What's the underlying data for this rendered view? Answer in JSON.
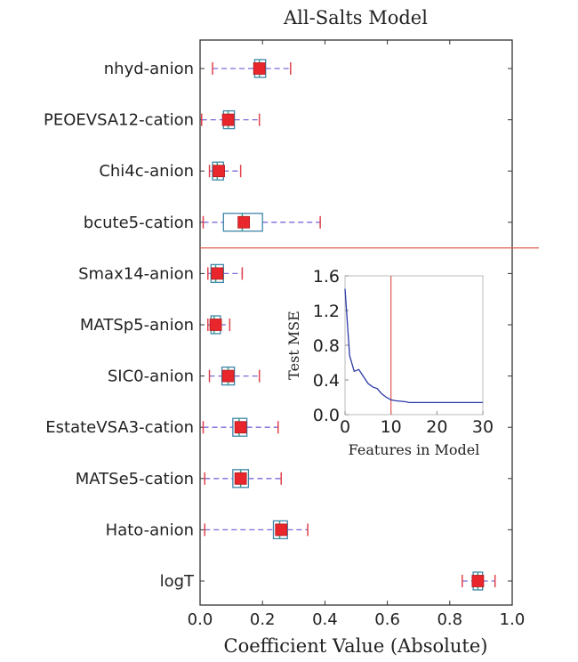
{
  "chart_data": {
    "type": "box",
    "title": "All-Salts Model",
    "xlabel": "Coefficient Value (Absolute)",
    "xlim": [
      0.0,
      1.0
    ],
    "xticks": [
      "0.0",
      "0.2",
      "0.4",
      "0.6",
      "0.8",
      "1.0"
    ],
    "separator_after_index": 3,
    "features": [
      {
        "label": "nhyd-anion",
        "whisker_low": 0.04,
        "q1": 0.175,
        "median": 0.19,
        "q3": 0.21,
        "whisker_high": 0.29,
        "mean": 0.19
      },
      {
        "label": "PEOEVSA12-cation",
        "whisker_low": 0.005,
        "q1": 0.075,
        "median": 0.09,
        "q3": 0.11,
        "whisker_high": 0.19,
        "mean": 0.09
      },
      {
        "label": "Chi4c-anion",
        "whisker_low": 0.03,
        "q1": 0.04,
        "median": 0.055,
        "q3": 0.075,
        "whisker_high": 0.13,
        "mean": 0.06
      },
      {
        "label": "bcute5-cation",
        "whisker_low": 0.01,
        "q1": 0.075,
        "median": 0.135,
        "q3": 0.2,
        "whisker_high": 0.385,
        "mean": 0.14
      },
      {
        "label": "Smax14-anion",
        "whisker_low": 0.025,
        "q1": 0.035,
        "median": 0.05,
        "q3": 0.075,
        "whisker_high": 0.135,
        "mean": 0.055
      },
      {
        "label": "MATSp5-anion",
        "whisker_low": 0.025,
        "q1": 0.035,
        "median": 0.045,
        "q3": 0.065,
        "whisker_high": 0.095,
        "mean": 0.05
      },
      {
        "label": "SIC0-anion",
        "whisker_low": 0.03,
        "q1": 0.07,
        "median": 0.09,
        "q3": 0.11,
        "whisker_high": 0.19,
        "mean": 0.09
      },
      {
        "label": "EstateVSA3-cation",
        "whisker_low": 0.01,
        "q1": 0.105,
        "median": 0.125,
        "q3": 0.15,
        "whisker_high": 0.25,
        "mean": 0.13
      },
      {
        "label": "MATSe5-cation",
        "whisker_low": 0.015,
        "q1": 0.105,
        "median": 0.13,
        "q3": 0.155,
        "whisker_high": 0.26,
        "mean": 0.13
      },
      {
        "label": "Hato-anion",
        "whisker_low": 0.015,
        "q1": 0.235,
        "median": 0.255,
        "q3": 0.28,
        "whisker_high": 0.345,
        "mean": 0.26
      },
      {
        "label": "logT",
        "whisker_low": 0.84,
        "q1": 0.875,
        "median": 0.89,
        "q3": 0.905,
        "whisker_high": 0.945,
        "mean": 0.89
      }
    ],
    "inset": {
      "type": "line",
      "xlabel": "Features in Model",
      "ylabel": "Test MSE",
      "xlim": [
        0,
        30
      ],
      "ylim": [
        0.0,
        1.6
      ],
      "xticks": [
        "0",
        "10",
        "20",
        "30"
      ],
      "yticks": [
        "0.0",
        "0.4",
        "0.8",
        "1.2",
        "1.6"
      ],
      "vline_x": 10,
      "x": [
        0,
        1,
        2,
        3,
        4,
        5,
        6,
        7,
        8,
        9,
        10,
        11,
        12,
        13,
        14,
        15,
        16,
        18,
        20,
        22,
        25,
        28,
        30
      ],
      "y": [
        1.45,
        0.68,
        0.5,
        0.52,
        0.44,
        0.36,
        0.32,
        0.3,
        0.24,
        0.2,
        0.17,
        0.16,
        0.155,
        0.15,
        0.14,
        0.14,
        0.14,
        0.14,
        0.14,
        0.14,
        0.14,
        0.14,
        0.14
      ]
    },
    "colors": {
      "box": "#3f86a8",
      "median": "#3aa38b",
      "whisker": "#7a6ad9",
      "cap": "#e0414b",
      "mean_marker": "#e8262c",
      "separator": "#e05a52",
      "inset_line": "#2b3aa8",
      "inset_vline": "#e05a52",
      "frame": "#333333"
    }
  }
}
